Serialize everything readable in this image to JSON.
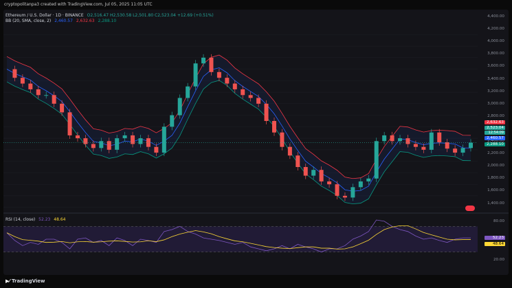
{
  "top_caption": "cryptopolitanpa3 created with TradingView.com, Jul 05, 2025 11:05 UTC",
  "header": {
    "symbol": "Ethereum / U.S. Dollar · 1D · BINANCE",
    "ohlc": "O2,516.47  H2,530.58  L2,501.80  C2,523.04  +12.69 (+0.51%)",
    "bb_label": "BB (20, SMA, close, 2)",
    "bb_mid": "2,460.57",
    "bb_upper": "2,632.63",
    "bb_lower": "2,288.10",
    "rsi_label": "RSI (14, close)",
    "rsi_value": "52.23",
    "rsi_ma": "48.64"
  },
  "colors": {
    "up": "#26a69a",
    "down": "#ef5350",
    "basis": "#2962ff",
    "upper": "#f23645",
    "lower": "#089981",
    "rsi": "#7e57c2",
    "rsi_ma": "#fdd835"
  },
  "price_axis": [
    "4,400.00",
    "4,200.00",
    "4,000.00",
    "3,800.00",
    "3,600.00",
    "3,400.00",
    "3,200.00",
    "3,000.00",
    "2,800.00",
    "2,600.00",
    "2,400.00",
    "2,200.00",
    "2,000.00",
    "1,800.00",
    "1,600.00",
    "1,400.00"
  ],
  "rsi_axis": [
    "80.00",
    "20.00"
  ],
  "price_tags": [
    "2,632.63",
    "2,523.04",
    "12:54:09",
    "2,460.57",
    "2,288.10"
  ],
  "rsi_tags": [
    "52.23",
    "48.64"
  ],
  "time_axis": [
    "Jun",
    "Jul",
    "Aug",
    "Sep",
    "Oct",
    "Nov",
    "Dec",
    "2025",
    "Feb",
    "Mar",
    "Apr",
    "May",
    "Jun",
    "Jul"
  ],
  "footer": "TradingView",
  "chart_data": {
    "type": "line",
    "title": "Ethereum / U.S. Dollar · 1D · BINANCE",
    "ylim": [
      1300,
      4500
    ],
    "series": [
      {
        "name": "ETH/USD close",
        "values": [
          3800,
          3650,
          3550,
          3450,
          3350,
          3350,
          3200,
          3050,
          2650,
          2600,
          2500,
          2430,
          2550,
          2400,
          2600,
          2650,
          2500,
          2600,
          2450,
          2350,
          2800,
          3000,
          3300,
          3500,
          3900,
          4000,
          3750,
          3650,
          3550,
          3450,
          3350,
          3300,
          3200,
          2900,
          2700,
          2450,
          2300,
          2100,
          1950,
          2050,
          1850,
          1800,
          1600,
          1570,
          1750,
          1850,
          1900,
          2550,
          2650,
          2550,
          2600,
          2500,
          2450,
          2400,
          2700,
          2530,
          2420,
          2350,
          2430,
          2523
        ]
      },
      {
        "name": "RSI",
        "values": [
          60,
          48,
          40,
          45,
          42,
          50,
          50,
          45,
          35,
          50,
          52,
          45,
          48,
          40,
          52,
          48,
          40,
          50,
          48,
          45,
          62,
          65,
          70,
          62,
          58,
          52,
          50,
          48,
          45,
          42,
          45,
          38,
          35,
          32,
          35,
          40,
          35,
          42,
          38,
          35,
          30,
          35,
          35,
          40,
          50,
          55,
          62,
          80,
          78,
          70,
          65,
          62,
          55,
          50,
          52,
          48,
          45,
          50,
          52,
          52
        ]
      }
    ]
  }
}
